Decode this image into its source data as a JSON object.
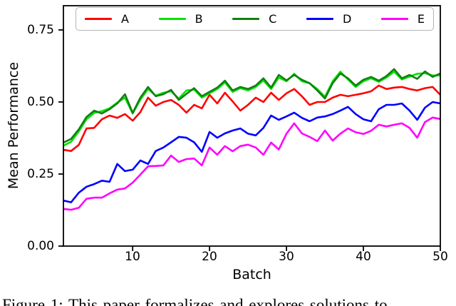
{
  "figure": {
    "caption": "Figure 1: This paper formalizes and explores solutions to"
  },
  "chart_data": {
    "type": "line",
    "title": "",
    "xlabel": "Batch",
    "ylabel": "Mean Performance",
    "xlim": [
      1,
      50
    ],
    "ylim": [
      0,
      0.834
    ],
    "xticks": [
      10,
      20,
      30,
      40,
      50
    ],
    "xtick_labels": [
      "10",
      "20",
      "30",
      "40",
      "50"
    ],
    "yticks": [
      0,
      0.25,
      0.5,
      0.75
    ],
    "ytick_labels": [
      "0.00",
      "0.25",
      "0.50",
      "0.75"
    ],
    "grid": false,
    "legend_position": "upper center, horizontal, inside axes",
    "x": [
      1,
      2,
      3,
      4,
      5,
      6,
      7,
      8,
      9,
      10,
      11,
      12,
      13,
      14,
      15,
      16,
      17,
      18,
      19,
      20,
      21,
      22,
      23,
      24,
      25,
      26,
      27,
      28,
      29,
      30,
      31,
      32,
      33,
      34,
      35,
      36,
      37,
      38,
      39,
      40,
      41,
      42,
      43,
      44,
      45,
      46,
      47,
      48,
      49,
      50
    ],
    "series": [
      {
        "name": "A",
        "color": "#ff0000",
        "values": [
          0.334,
          0.33,
          0.351,
          0.408,
          0.41,
          0.44,
          0.453,
          0.445,
          0.458,
          0.435,
          0.465,
          0.515,
          0.487,
          0.5,
          0.507,
          0.49,
          0.463,
          0.49,
          0.478,
          0.525,
          0.495,
          0.532,
          0.502,
          0.47,
          0.49,
          0.515,
          0.5,
          0.532,
          0.507,
          0.53,
          0.545,
          0.52,
          0.49,
          0.5,
          0.5,
          0.515,
          0.525,
          0.52,
          0.525,
          0.53,
          0.537,
          0.557,
          0.545,
          0.55,
          0.552,
          0.545,
          0.54,
          0.548,
          0.552,
          0.525
        ]
      },
      {
        "name": "B",
        "color": "#00e400",
        "values": [
          0.348,
          0.362,
          0.398,
          0.44,
          0.462,
          0.468,
          0.478,
          0.498,
          0.515,
          0.46,
          0.508,
          0.545,
          0.522,
          0.532,
          0.537,
          0.512,
          0.54,
          0.543,
          0.515,
          0.53,
          0.545,
          0.568,
          0.535,
          0.548,
          0.54,
          0.552,
          0.575,
          0.545,
          0.585,
          0.572,
          0.598,
          0.572,
          0.565,
          0.545,
          0.518,
          0.572,
          0.605,
          0.578,
          0.552,
          0.572,
          0.582,
          0.57,
          0.585,
          0.605,
          0.578,
          0.588,
          0.598,
          0.6,
          0.592,
          0.592
        ]
      },
      {
        "name": "C",
        "color": "#128012",
        "values": [
          0.359,
          0.372,
          0.405,
          0.448,
          0.47,
          0.46,
          0.475,
          0.495,
          0.527,
          0.462,
          0.515,
          0.552,
          0.52,
          0.527,
          0.542,
          0.507,
          0.528,
          0.548,
          0.52,
          0.535,
          0.55,
          0.574,
          0.54,
          0.552,
          0.545,
          0.557,
          0.582,
          0.55,
          0.594,
          0.575,
          0.594,
          0.577,
          0.565,
          0.54,
          0.512,
          0.565,
          0.599,
          0.582,
          0.557,
          0.577,
          0.587,
          0.574,
          0.59,
          0.614,
          0.582,
          0.594,
          0.58,
          0.606,
          0.587,
          0.599
        ]
      },
      {
        "name": "D",
        "color": "#0000ff",
        "values": [
          0.158,
          0.152,
          0.185,
          0.206,
          0.215,
          0.227,
          0.223,
          0.285,
          0.26,
          0.265,
          0.297,
          0.285,
          0.33,
          0.342,
          0.36,
          0.379,
          0.376,
          0.36,
          0.327,
          0.396,
          0.376,
          0.391,
          0.401,
          0.408,
          0.39,
          0.384,
          0.41,
          0.453,
          0.438,
          0.45,
          0.463,
          0.445,
          0.433,
          0.446,
          0.45,
          0.458,
          0.47,
          0.483,
          0.458,
          0.44,
          0.433,
          0.475,
          0.49,
          0.49,
          0.495,
          0.47,
          0.438,
          0.48,
          0.5,
          0.495
        ]
      },
      {
        "name": "E",
        "color": "#ff00ff",
        "values": [
          0.129,
          0.126,
          0.133,
          0.164,
          0.168,
          0.168,
          0.183,
          0.196,
          0.2,
          0.22,
          0.248,
          0.277,
          0.278,
          0.28,
          0.314,
          0.292,
          0.302,
          0.304,
          0.28,
          0.342,
          0.317,
          0.347,
          0.329,
          0.347,
          0.352,
          0.342,
          0.317,
          0.359,
          0.335,
          0.39,
          0.426,
          0.391,
          0.379,
          0.364,
          0.401,
          0.366,
          0.39,
          0.408,
          0.395,
          0.389,
          0.4,
          0.421,
          0.415,
          0.421,
          0.426,
          0.41,
          0.376,
          0.43,
          0.446,
          0.441
        ]
      }
    ]
  }
}
